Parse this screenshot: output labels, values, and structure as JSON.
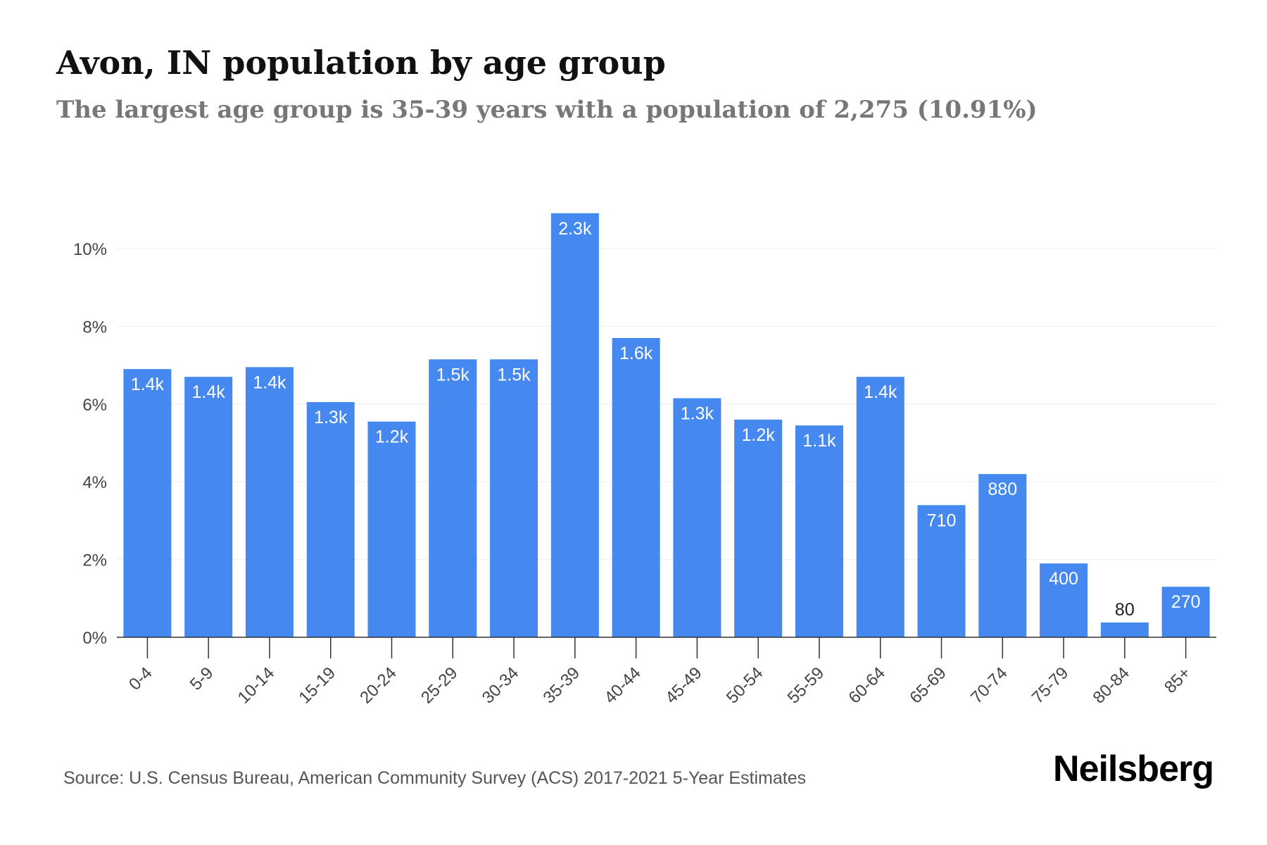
{
  "header": {
    "title": "Avon, IN population by age group",
    "subtitle": "The largest age group is 35-39 years with a population of 2,275 (10.91%)"
  },
  "footer": {
    "source": "Source: U.S. Census Bureau, American Community Survey (ACS) 2017-2021 5-Year Estimates",
    "brand": "Neilsberg"
  },
  "colors": {
    "bar": "#4589f0",
    "grid": "#eeeeee",
    "axis": "#333333",
    "tick_label": "#444444",
    "label_inside": "#ffffff",
    "label_outside": "#222222"
  },
  "chart_data": {
    "type": "bar",
    "categories": [
      "0-4",
      "5-9",
      "10-14",
      "15-19",
      "20-24",
      "25-29",
      "30-34",
      "35-39",
      "40-44",
      "45-49",
      "50-54",
      "55-59",
      "60-64",
      "65-69",
      "70-74",
      "75-79",
      "80-84",
      "85+"
    ],
    "values": [
      6.9,
      6.7,
      6.95,
      6.05,
      5.55,
      7.15,
      7.15,
      10.91,
      7.7,
      6.15,
      5.6,
      5.45,
      6.7,
      3.4,
      4.2,
      1.9,
      0.38,
      1.3
    ],
    "data_labels": [
      "1.4k",
      "1.4k",
      "1.4k",
      "1.3k",
      "1.2k",
      "1.5k",
      "1.5k",
      "2.3k",
      "1.6k",
      "1.3k",
      "1.2k",
      "1.1k",
      "1.4k",
      "710",
      "880",
      "400",
      "80",
      "270"
    ],
    "yticks": [
      "0%",
      "2%",
      "4%",
      "6%",
      "8%",
      "10%"
    ],
    "ytick_values": [
      0,
      2,
      4,
      6,
      8,
      10
    ],
    "ylim": [
      0,
      11
    ],
    "xlabel": "",
    "ylabel": "",
    "grid": true,
    "legend": "none"
  }
}
